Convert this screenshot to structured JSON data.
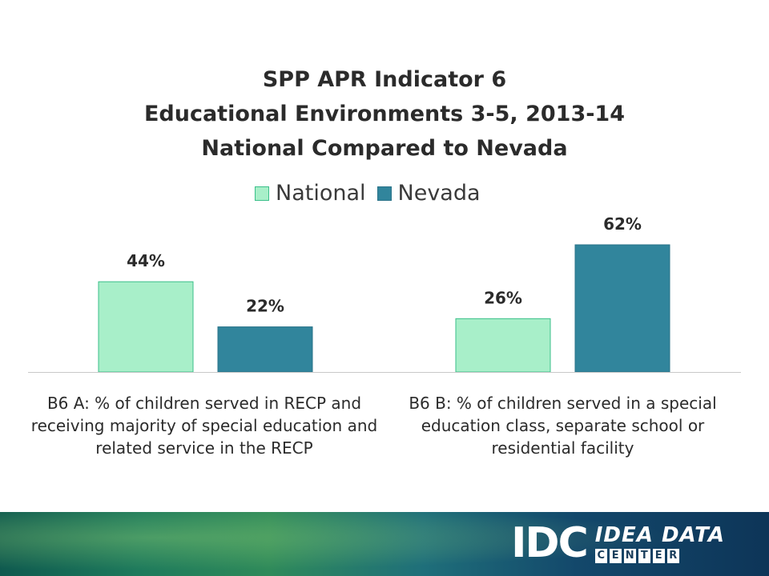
{
  "chart_data": {
    "type": "bar",
    "title_lines": [
      "SPP APR Indicator 6",
      "Educational Environments 3-5, 2013-14",
      "National Compared to Nevada"
    ],
    "categories": [
      "B6 A: % of children served in RECP and receiving majority of special education and related service in the RECP",
      "B6 B: % of children served in a special education class, separate school or residential facility"
    ],
    "series": [
      {
        "name": "National",
        "values": [
          44,
          26
        ],
        "labels": [
          "44%",
          "26%"
        ],
        "color": "#a8efc9",
        "border": "#3bbf8a"
      },
      {
        "name": "Nevada",
        "values": [
          22,
          62
        ],
        "labels": [
          "22%",
          "62%"
        ],
        "color": "#31859c",
        "border": "#2a7389"
      }
    ],
    "ylim": [
      0,
      70
    ],
    "grid": false,
    "legend_position": "top-center"
  },
  "footer": {
    "logo_idc": "IDC",
    "logo_idea_data": "IDEA DATA",
    "logo_center_letters": [
      "C",
      "E",
      "N",
      "T",
      "E",
      "R"
    ]
  }
}
